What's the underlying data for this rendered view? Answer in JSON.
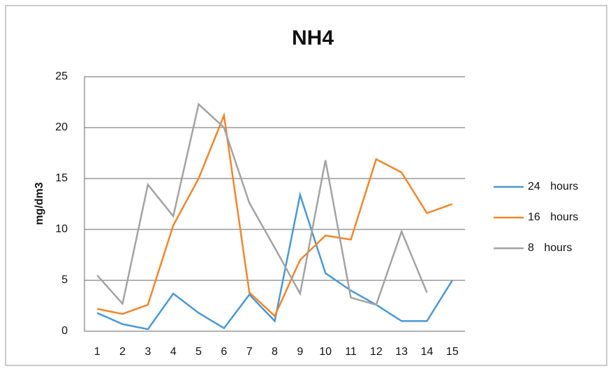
{
  "chart_data": {
    "type": "line",
    "title": "NH4",
    "y_label": "mg/dm3",
    "categories": [
      "1",
      "2",
      "3",
      "4",
      "5",
      "6",
      "7",
      "8",
      "9",
      "10",
      "11",
      "12",
      "13",
      "14",
      "15"
    ],
    "series": [
      {
        "name": "24 hours",
        "color": "#4a98d4",
        "values": [
          1.8,
          0.7,
          0.2,
          3.7,
          1.8,
          0.3,
          3.6,
          1.0,
          13.4,
          5.7,
          4.0,
          2.6,
          1.0,
          1.0,
          5.0
        ]
      },
      {
        "name": "16 hours",
        "color": "#f0862b",
        "values": [
          2.2,
          1.7,
          2.6,
          10.4,
          15.0,
          21.2,
          3.8,
          1.5,
          7.0,
          9.4,
          9.0,
          16.9,
          15.6,
          11.6,
          12.5
        ]
      },
      {
        "name": "8 hours",
        "color": "#a3a3a3",
        "values": [
          5.5,
          2.7,
          14.4,
          11.3,
          22.3,
          20.0,
          12.6,
          8.2,
          3.7,
          16.8,
          3.3,
          2.6,
          9.8,
          3.8,
          null
        ]
      }
    ],
    "ylim": [
      0,
      25
    ],
    "yticks": [
      0,
      5,
      10,
      15,
      20,
      25
    ],
    "grid": true,
    "legend": "right"
  }
}
